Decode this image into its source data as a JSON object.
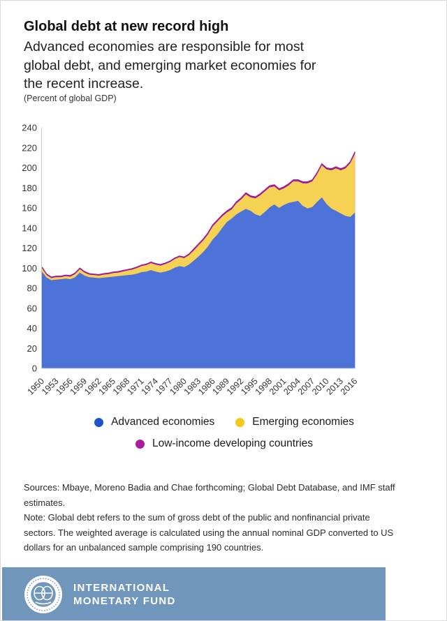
{
  "page": {
    "title": "Global debt at new record high",
    "subtitle_lines": [
      "Advanced economies are responsible for most",
      "global debt, and emerging market economies for",
      "the recent increase."
    ],
    "unit_label": "(Percent of global GDP)"
  },
  "chart_data": {
    "type": "area",
    "stacked": true,
    "title": "Global debt at new record high",
    "ylabel": "(Percent of global GDP)",
    "xlabel": "",
    "grid": false,
    "legend_position": "bottom",
    "ylim": [
      0,
      240
    ],
    "y_tick_step": 20,
    "x_start": 1950,
    "x_end": 2016,
    "x_tick_labels": [
      "1950",
      "1953",
      "1956",
      "1959",
      "1962",
      "1965",
      "1968",
      "1971",
      "1974",
      "1977",
      "1980",
      "1983",
      "1986",
      "1989",
      "1992",
      "1995",
      "1998",
      "2001",
      "2004",
      "2007",
      "2010",
      "2013",
      "2016"
    ],
    "axis_color": "#c9c9c9",
    "tick_text_color": "#333333",
    "series": [
      {
        "name": "Advanced economies",
        "color": "#4d72d8",
        "legend_color": "#1d53c9",
        "values": [
          96.5,
          90.5,
          88,
          88.5,
          89,
          89.5,
          89,
          91,
          95.5,
          92.5,
          91,
          90.5,
          90,
          90.5,
          91,
          91.5,
          92,
          92.5,
          93,
          93.5,
          94.5,
          96,
          96.5,
          98,
          96.5,
          95.5,
          96.5,
          98,
          100.5,
          102,
          101,
          103.5,
          107.5,
          111.5,
          116,
          121.5,
          128.5,
          133.5,
          140,
          146,
          149.5,
          153.5,
          156.5,
          159,
          157,
          153.5,
          152,
          156,
          160.5,
          163.5,
          160,
          163,
          165,
          166,
          167,
          162,
          159.5,
          161,
          166,
          170.5,
          164,
          159.5,
          157,
          154.5,
          152,
          151,
          155.5
        ]
      },
      {
        "name": "Emerging economies",
        "color": "#f5d254",
        "legend_color": "#f3c91c",
        "values": [
          3.5,
          2.5,
          2,
          2.5,
          2,
          2.5,
          2.5,
          3,
          3.5,
          3,
          2.5,
          2.5,
          2.5,
          3,
          3,
          3.5,
          3.5,
          4,
          4.5,
          5,
          5.5,
          6,
          6.5,
          7,
          7,
          7,
          7.5,
          8,
          8.5,
          9,
          9,
          9.5,
          10,
          11,
          11.5,
          12,
          13,
          13,
          11.5,
          9.5,
          9,
          11,
          12,
          14.5,
          13.5,
          16,
          20.5,
          20.5,
          20,
          18,
          17.5,
          16.5,
          17.5,
          20.5,
          19.5,
          22.5,
          25,
          25.5,
          27.5,
          32,
          34.5,
          38,
          42.5,
          43,
          47.5,
          53.5,
          58.5
        ]
      },
      {
        "name": "Low-income developing countries",
        "color": "#a11c99",
        "legend_color": "#a81e9e",
        "values": [
          1,
          1,
          1,
          1,
          1,
          1,
          1,
          1,
          1,
          1,
          1,
          1,
          1,
          1,
          1,
          1,
          1,
          1,
          1,
          1,
          1,
          1,
          1,
          1,
          1,
          1,
          1,
          1,
          1,
          1,
          1,
          1,
          1.5,
          1.5,
          1.5,
          1.5,
          1.5,
          1.5,
          1.5,
          1.5,
          1.5,
          1.5,
          1.5,
          1.5,
          1.5,
          1.5,
          1.5,
          1.5,
          1.5,
          1.5,
          1.5,
          1.5,
          1.5,
          1.5,
          1.5,
          1.5,
          1.5,
          1.5,
          1.5,
          1.5,
          1.5,
          1.5,
          1.5,
          1.5,
          1.5,
          1.5,
          2
        ]
      }
    ]
  },
  "sources": {
    "lines": [
      "Sources: Mbaye, Moreno Badia and Chae forthcoming; Global Debt Database, and IMF staff",
      "estimates."
    ]
  },
  "note": {
    "lines": [
      "Note: Global debt refers to the sum of gross debt of the public and nonfinancial private",
      "sectors. The weighted average is calculated using the annual nominal GDP converted to US",
      "dollars for an unbalanced sample comprising 190 countries."
    ]
  },
  "footer": {
    "bar_color": "#7096bb",
    "org_lines": [
      "INTERNATIONAL",
      "MONETARY FUND"
    ]
  }
}
